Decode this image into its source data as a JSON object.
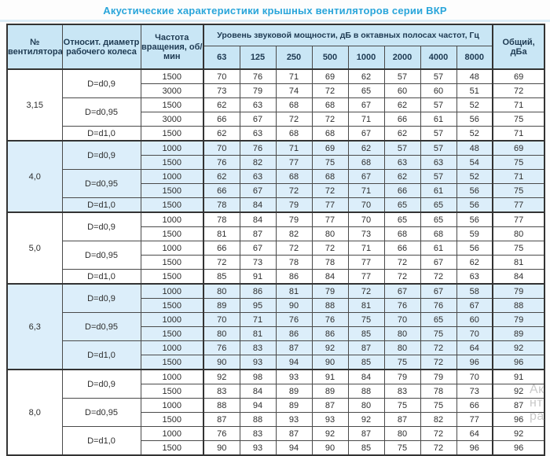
{
  "title": "Акустические характеристики крышных вентиляторов серии ВКР",
  "colors": {
    "title_accent": "#29a5da",
    "header_bg": "#c9e6f5",
    "shade_row_bg": "#dceefa",
    "border": "#333333",
    "header_text": "#1e3a52"
  },
  "watermark_fragments": [
    "Ак",
    "нт",
    "ра"
  ],
  "table": {
    "headers": {
      "fan_no": "№ вентилятора",
      "diameter": "Относит. диаметр рабочего колеса",
      "speed": "Частота вращения, об/мин",
      "band_title": "Уровень звуковой мощности, дБ в октавных полосах частот, Гц",
      "frequencies": [
        "63",
        "125",
        "250",
        "500",
        "1000",
        "2000",
        "4000",
        "8000"
      ],
      "total": "Общий, дБа"
    },
    "groups": [
      {
        "fan": "3,15",
        "shade": false,
        "subgroups": [
          {
            "diameter": "D=d0,9",
            "rows": [
              {
                "speed": "1500",
                "levels": [
                  70,
                  76,
                  71,
                  69,
                  62,
                  57,
                  57,
                  48
                ],
                "total": 69
              },
              {
                "speed": "3000",
                "levels": [
                  73,
                  79,
                  74,
                  72,
                  65,
                  60,
                  60,
                  51
                ],
                "total": 72
              }
            ]
          },
          {
            "diameter": "D=d0,95",
            "rows": [
              {
                "speed": "1500",
                "levels": [
                  62,
                  63,
                  68,
                  68,
                  67,
                  62,
                  57,
                  52
                ],
                "total": 71
              },
              {
                "speed": "3000",
                "levels": [
                  66,
                  67,
                  72,
                  72,
                  71,
                  66,
                  61,
                  56
                ],
                "total": 75
              }
            ]
          },
          {
            "diameter": "D=d1,0",
            "rows": [
              {
                "speed": "1500",
                "levels": [
                  62,
                  63,
                  68,
                  68,
                  67,
                  62,
                  57,
                  52
                ],
                "total": 71
              }
            ]
          }
        ]
      },
      {
        "fan": "4,0",
        "shade": true,
        "subgroups": [
          {
            "diameter": "D=d0,9",
            "rows": [
              {
                "speed": "1000",
                "levels": [
                  70,
                  76,
                  71,
                  69,
                  62,
                  57,
                  57,
                  48
                ],
                "total": 69
              },
              {
                "speed": "1500",
                "levels": [
                  76,
                  82,
                  77,
                  75,
                  68,
                  63,
                  63,
                  54
                ],
                "total": 75
              }
            ]
          },
          {
            "diameter": "D=d0,95",
            "rows": [
              {
                "speed": "1000",
                "levels": [
                  62,
                  63,
                  68,
                  68,
                  67,
                  62,
                  57,
                  52
                ],
                "total": 71
              },
              {
                "speed": "1500",
                "levels": [
                  66,
                  67,
                  72,
                  72,
                  71,
                  66,
                  61,
                  56
                ],
                "total": 75
              }
            ]
          },
          {
            "diameter": "D=d1,0",
            "rows": [
              {
                "speed": "1500",
                "levels": [
                  78,
                  84,
                  79,
                  77,
                  70,
                  65,
                  65,
                  56
                ],
                "total": 77
              }
            ]
          }
        ]
      },
      {
        "fan": "5,0",
        "shade": false,
        "subgroups": [
          {
            "diameter": "D=d0,9",
            "rows": [
              {
                "speed": "1000",
                "levels": [
                  78,
                  84,
                  79,
                  77,
                  70,
                  65,
                  65,
                  56
                ],
                "total": 77
              },
              {
                "speed": "1500",
                "levels": [
                  81,
                  87,
                  82,
                  80,
                  73,
                  68,
                  68,
                  59
                ],
                "total": 80
              }
            ]
          },
          {
            "diameter": "D=d0,95",
            "rows": [
              {
                "speed": "1000",
                "levels": [
                  66,
                  67,
                  72,
                  72,
                  71,
                  66,
                  61,
                  56
                ],
                "total": 75
              },
              {
                "speed": "1500",
                "levels": [
                  72,
                  73,
                  78,
                  78,
                  77,
                  72,
                  67,
                  62
                ],
                "total": 81
              }
            ]
          },
          {
            "diameter": "D=d1,0",
            "rows": [
              {
                "speed": "1500",
                "levels": [
                  85,
                  91,
                  86,
                  84,
                  77,
                  72,
                  72,
                  63
                ],
                "total": 84
              }
            ]
          }
        ]
      },
      {
        "fan": "6,3",
        "shade": true,
        "subgroups": [
          {
            "diameter": "D=d0,9",
            "rows": [
              {
                "speed": "1000",
                "levels": [
                  80,
                  86,
                  81,
                  79,
                  72,
                  67,
                  67,
                  58
                ],
                "total": 79
              },
              {
                "speed": "1500",
                "levels": [
                  89,
                  95,
                  90,
                  88,
                  81,
                  76,
                  76,
                  67
                ],
                "total": 88
              }
            ]
          },
          {
            "diameter": "D=d0,95",
            "rows": [
              {
                "speed": "1000",
                "levels": [
                  70,
                  71,
                  76,
                  76,
                  75,
                  70,
                  65,
                  60
                ],
                "total": 79
              },
              {
                "speed": "1500",
                "levels": [
                  80,
                  81,
                  86,
                  86,
                  85,
                  80,
                  75,
                  70
                ],
                "total": 89
              }
            ]
          },
          {
            "diameter": "D=d1,0",
            "rows": [
              {
                "speed": "1000",
                "levels": [
                  76,
                  83,
                  87,
                  92,
                  87,
                  80,
                  72,
                  64
                ],
                "total": 92
              },
              {
                "speed": "1500",
                "levels": [
                  90,
                  93,
                  94,
                  90,
                  85,
                  75,
                  72,
                  96
                ],
                "total": 96
              }
            ]
          }
        ]
      },
      {
        "fan": "8,0",
        "shade": false,
        "subgroups": [
          {
            "diameter": "D=d0,9",
            "rows": [
              {
                "speed": "1000",
                "levels": [
                  92,
                  98,
                  93,
                  91,
                  84,
                  79,
                  79,
                  70
                ],
                "total": 91
              },
              {
                "speed": "1500",
                "levels": [
                  83,
                  84,
                  89,
                  89,
                  88,
                  83,
                  78,
                  73
                ],
                "total": 92
              }
            ]
          },
          {
            "diameter": "D=d0,95",
            "rows": [
              {
                "speed": "1000",
                "levels": [
                  88,
                  94,
                  89,
                  87,
                  80,
                  75,
                  75,
                  66
                ],
                "total": 87
              },
              {
                "speed": "1500",
                "levels": [
                  87,
                  88,
                  93,
                  93,
                  92,
                  87,
                  82,
                  77
                ],
                "total": 96
              }
            ]
          },
          {
            "diameter": "D=d1,0",
            "rows": [
              {
                "speed": "1000",
                "levels": [
                  76,
                  83,
                  87,
                  92,
                  87,
                  80,
                  72,
                  64
                ],
                "total": 92
              },
              {
                "speed": "1500",
                "levels": [
                  90,
                  93,
                  94,
                  90,
                  85,
                  75,
                  72,
                  96
                ],
                "total": 96
              }
            ]
          }
        ]
      }
    ]
  }
}
